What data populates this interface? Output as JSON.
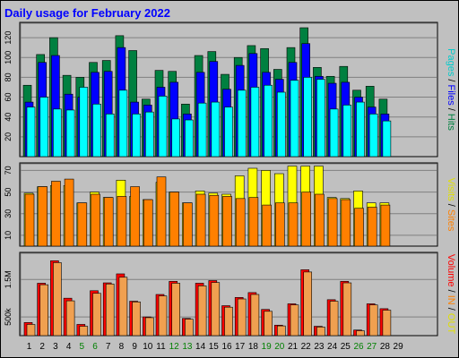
{
  "title": "Daily usage for February 2022",
  "colors": {
    "hits": "#008040",
    "files": "#0000ff",
    "pages": "#00ffff",
    "visits": "#ffff00",
    "sites": "#ff8000",
    "kbytes": "#ff0000",
    "weekend": "#008000",
    "day_text": "#000000",
    "panel": "#c0c0c0",
    "plot": "#c0c0c0"
  },
  "chart_data": [
    {
      "type": "bar",
      "name": "hits-files-pages",
      "categories": [
        "1",
        "2",
        "3",
        "4",
        "5",
        "6",
        "7",
        "8",
        "9",
        "10",
        "11",
        "12",
        "13",
        "14",
        "15",
        "16",
        "17",
        "18",
        "19",
        "20",
        "21",
        "22",
        "23",
        "24",
        "25",
        "26",
        "27",
        "28",
        "29"
      ],
      "weekend_days": [
        "5",
        "6",
        "12",
        "13",
        "19",
        "20",
        "26",
        "27"
      ],
      "series": [
        {
          "key": "hits",
          "values": [
            72,
            103,
            120,
            82,
            80,
            95,
            97,
            122,
            107,
            58,
            87,
            86,
            53,
            102,
            106,
            83,
            100,
            112,
            109,
            88,
            110,
            130,
            90,
            81,
            91,
            67,
            71,
            58,
            0
          ]
        },
        {
          "key": "files",
          "values": [
            55,
            95,
            102,
            63,
            60,
            85,
            86,
            110,
            55,
            52,
            70,
            75,
            43,
            85,
            96,
            68,
            92,
            104,
            85,
            78,
            95,
            114,
            81,
            74,
            75,
            60,
            50,
            43,
            0
          ]
        },
        {
          "key": "pages",
          "values": [
            50,
            60,
            48,
            47,
            70,
            53,
            43,
            67,
            43,
            45,
            61,
            38,
            37,
            54,
            55,
            50,
            67,
            70,
            72,
            65,
            77,
            80,
            78,
            48,
            52,
            55,
            43,
            36,
            0
          ]
        }
      ],
      "yticks": [
        20,
        40,
        60,
        80,
        100,
        120
      ],
      "ylim": [
        0,
        130
      ],
      "right_label": [
        {
          "text": "Pages",
          "color": "#00cccc"
        },
        {
          "text": " / ",
          "color": "#000000"
        },
        {
          "text": "Files",
          "color": "#0000ff"
        },
        {
          "text": " / ",
          "color": "#000000"
        },
        {
          "text": "Hits",
          "color": "#008040"
        }
      ]
    },
    {
      "type": "bar",
      "name": "visits-sites",
      "categories": [
        "1",
        "2",
        "3",
        "4",
        "5",
        "6",
        "7",
        "8",
        "9",
        "10",
        "11",
        "12",
        "13",
        "14",
        "15",
        "16",
        "17",
        "18",
        "19",
        "20",
        "21",
        "22",
        "23",
        "24",
        "25",
        "26",
        "27",
        "28",
        "29"
      ],
      "series": [
        {
          "key": "visits",
          "values": [
            49,
            55,
            56,
            56,
            40,
            50,
            45,
            61,
            46,
            43,
            59,
            50,
            40,
            51,
            49,
            48,
            65,
            72,
            70,
            67,
            74,
            74,
            74,
            45,
            44,
            51,
            40,
            40,
            0
          ]
        },
        {
          "key": "sites",
          "values": [
            48,
            55,
            60,
            62,
            40,
            48,
            45,
            46,
            55,
            43,
            64,
            50,
            40,
            48,
            47,
            46,
            44,
            45,
            38,
            40,
            40,
            50,
            48,
            44,
            43,
            35,
            36,
            38,
            0
          ]
        }
      ],
      "yticks": [
        10,
        30,
        50,
        70
      ],
      "ylim": [
        0,
        72
      ],
      "right_label": [
        {
          "text": "Visits",
          "color": "#e0e000"
        },
        {
          "text": " / ",
          "color": "#000000"
        },
        {
          "text": "Sites",
          "color": "#ff8000"
        }
      ]
    },
    {
      "type": "bar",
      "name": "kbytes-volume",
      "categories": [
        "1",
        "2",
        "3",
        "4",
        "5",
        "6",
        "7",
        "8",
        "9",
        "10",
        "11",
        "12",
        "13",
        "14",
        "15",
        "16",
        "17",
        "18",
        "19",
        "20",
        "21",
        "22",
        "23",
        "24",
        "25",
        "26",
        "27",
        "28",
        "29"
      ],
      "series": [
        {
          "key": "kbytes",
          "values": [
            350,
            1400,
            2000,
            1000,
            300,
            1200,
            1410,
            1650,
            920,
            500,
            1100,
            1450,
            460,
            1400,
            1470,
            800,
            1020,
            1150,
            700,
            280,
            850,
            1760,
            250,
            960,
            1450,
            150,
            850,
            720,
            0
          ]
        },
        {
          "key": "kbytes_out",
          "values": [
            300,
            1360,
            1950,
            930,
            250,
            1130,
            1380,
            1560,
            900,
            480,
            1060,
            1400,
            440,
            1330,
            1420,
            760,
            980,
            1100,
            650,
            260,
            820,
            1700,
            230,
            920,
            1410,
            130,
            820,
            680,
            0
          ]
        }
      ],
      "yticks": [
        "500k",
        "1.5M"
      ],
      "ytick_values": [
        500,
        1500
      ],
      "ylim": [
        0,
        2080
      ],
      "right_label": [
        {
          "text": "Volume",
          "color": "#ff0000"
        },
        {
          "text": " / ",
          "color": "#000000"
        },
        {
          "text": "IN",
          "color": "#ff8000"
        },
        {
          "text": " / ",
          "color": "#000000"
        },
        {
          "text": "OUT",
          "color": "#e0e000"
        }
      ]
    }
  ]
}
